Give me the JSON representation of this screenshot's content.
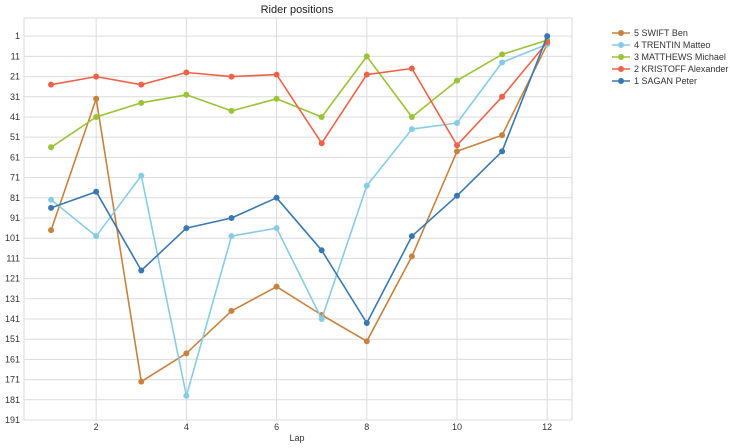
{
  "chart_data": {
    "type": "line",
    "title": "Rider positions",
    "xlabel": "Lap",
    "ylabel": "",
    "y_inverted": true,
    "xlim": [
      0.4,
      12.55
    ],
    "ylim": [
      191,
      -8
    ],
    "xticks": [
      2,
      4,
      6,
      8,
      10,
      12
    ],
    "yticks": [
      1,
      11,
      21,
      31,
      41,
      51,
      61,
      71,
      81,
      91,
      101,
      111,
      121,
      131,
      141,
      151,
      161,
      171,
      181,
      191
    ],
    "grid": true,
    "legend_position": "outside-top-right",
    "x": [
      1,
      2,
      3,
      4,
      5,
      6,
      7,
      8,
      9,
      10,
      11,
      12
    ],
    "series": [
      {
        "name": "5 SWIFT Ben",
        "color": "#c8823e",
        "values": [
          97,
          32,
          172,
          158,
          137,
          125,
          139,
          152,
          110,
          58,
          50,
          5
        ]
      },
      {
        "name": "4 TRENTIN Matteo",
        "color": "#87cce6",
        "values": [
          82,
          100,
          70,
          179,
          100,
          96,
          141,
          75,
          47,
          44,
          14,
          5
        ]
      },
      {
        "name": "3 MATTHEWS Michael",
        "color": "#9ac436",
        "values": [
          56,
          41,
          34,
          30,
          38,
          32,
          41,
          11,
          41,
          23,
          10,
          3
        ]
      },
      {
        "name": "2 KRISTOFF Alexander",
        "color": "#f06248",
        "values": [
          25,
          21,
          25,
          19,
          21,
          20,
          54,
          20,
          17,
          55,
          31,
          4
        ]
      },
      {
        "name": "1 SAGAN Peter",
        "color": "#3a78b2",
        "values": [
          86,
          78,
          117,
          96,
          91,
          81,
          107,
          143,
          100,
          80,
          58,
          1
        ]
      }
    ]
  }
}
